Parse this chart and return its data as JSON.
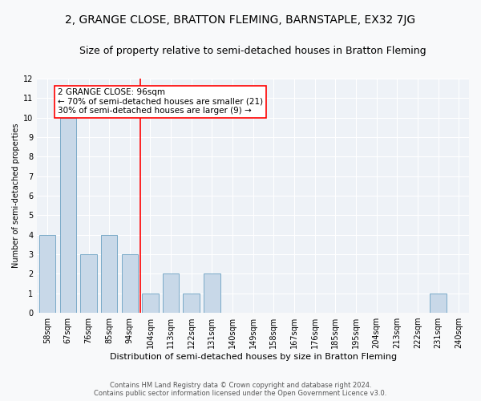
{
  "title": "2, GRANGE CLOSE, BRATTON FLEMING, BARNSTAPLE, EX32 7JG",
  "subtitle": "Size of property relative to semi-detached houses in Bratton Fleming",
  "xlabel": "Distribution of semi-detached houses by size in Bratton Fleming",
  "ylabel": "Number of semi-detached properties",
  "categories": [
    "58sqm",
    "67sqm",
    "76sqm",
    "85sqm",
    "94sqm",
    "104sqm",
    "113sqm",
    "122sqm",
    "131sqm",
    "140sqm",
    "149sqm",
    "158sqm",
    "167sqm",
    "176sqm",
    "185sqm",
    "195sqm",
    "204sqm",
    "213sqm",
    "222sqm",
    "231sqm",
    "240sqm"
  ],
  "values": [
    4,
    10,
    3,
    4,
    3,
    1,
    2,
    1,
    2,
    0,
    0,
    0,
    0,
    0,
    0,
    0,
    0,
    0,
    0,
    1,
    0
  ],
  "bar_color": "#c8d8e8",
  "bar_edge_color": "#7aaac8",
  "red_line_after_index": 4,
  "annotation_title": "2 GRANGE CLOSE: 96sqm",
  "annotation_line1": "← 70% of semi-detached houses are smaller (21)",
  "annotation_line2": "30% of semi-detached houses are larger (9) →",
  "footer_line1": "Contains HM Land Registry data © Crown copyright and database right 2024.",
  "footer_line2": "Contains public sector information licensed under the Open Government Licence v3.0.",
  "ylim": [
    0,
    12
  ],
  "yticks": [
    0,
    1,
    2,
    3,
    4,
    5,
    6,
    7,
    8,
    9,
    10,
    11,
    12
  ],
  "background_color": "#eef2f7",
  "grid_color": "#ffffff",
  "fig_facecolor": "#f8f9fa",
  "title_fontsize": 10,
  "subtitle_fontsize": 9,
  "xlabel_fontsize": 8,
  "ylabel_fontsize": 7,
  "tick_fontsize": 7,
  "footer_fontsize": 6,
  "annotation_fontsize": 7.5
}
